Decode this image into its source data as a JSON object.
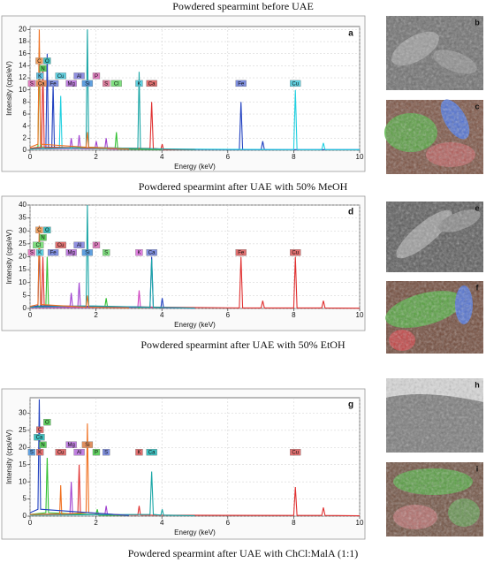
{
  "chart_data": [
    {
      "type": "line",
      "title": "Powdered spearmint before UAE",
      "panel": "a",
      "x_label": "Energy (keV)",
      "y_label": "Intensity (cps/eV)",
      "xlim": [
        0,
        10
      ],
      "xticks": [
        0,
        2,
        4,
        6,
        8,
        10
      ],
      "ylim": [
        0,
        20.5
      ],
      "yticks": [
        0,
        2,
        4,
        6,
        8,
        10,
        12,
        14,
        16,
        18,
        20
      ],
      "grid": true,
      "series": [
        {
          "color": "#2040c0",
          "x": [
            0,
            0.48,
            0.52,
            0.56,
            0.66,
            0.7,
            0.74,
            6.35,
            6.4,
            6.45,
            7.01,
            7.06,
            7.11,
            10
          ],
          "values": [
            0.2,
            0.3,
            16,
            0.4,
            0.3,
            11,
            0.3,
            0.1,
            8,
            0.1,
            0.1,
            1.5,
            0.1,
            0.1
          ]
        },
        {
          "color": "#20d0e0",
          "x": [
            0,
            0.89,
            0.93,
            0.97,
            8.0,
            8.05,
            8.1,
            8.85,
            8.9,
            8.95,
            10
          ],
          "values": [
            0.2,
            0.3,
            9,
            0.3,
            0.1,
            10,
            0.1,
            0.1,
            1.2,
            0.1,
            0.1
          ]
        },
        {
          "color": "#a040d0",
          "x": [
            0,
            1.21,
            1.25,
            1.29,
            1.45,
            1.49,
            1.53,
            1.97,
            2.01,
            2.05,
            2.27,
            2.31,
            2.35,
            4
          ],
          "values": [
            0.2,
            0.3,
            2,
            0.3,
            0.3,
            2.5,
            0.3,
            0.3,
            1.5,
            0.3,
            0.3,
            2,
            0.2,
            0.1
          ]
        },
        {
          "color": "#30c030",
          "x": [
            0,
            0.24,
            0.28,
            0.32,
            2.58,
            2.62,
            2.66,
            4
          ],
          "values": [
            0.3,
            0.5,
            17,
            0.5,
            0.3,
            3,
            0.2,
            0.1
          ]
        },
        {
          "color": "#e03030",
          "x": [
            0,
            0.35,
            0.39,
            0.43,
            3.64,
            3.69,
            3.74,
            3.97,
            4.01,
            4.05,
            5
          ],
          "values": [
            0.3,
            0.5,
            14,
            0.5,
            0.3,
            8,
            0.3,
            0.2,
            1,
            0.1,
            0.1
          ]
        },
        {
          "color": "#1aa6a6",
          "x": [
            0,
            1.7,
            1.74,
            1.78,
            3.27,
            3.31,
            3.35,
            5
          ],
          "values": [
            0.2,
            0.5,
            20,
            0.5,
            0.3,
            13,
            0.3,
            0.1
          ]
        },
        {
          "color": "#f07020",
          "x": [
            0,
            0.24,
            0.28,
            0.32,
            1.7,
            1.74,
            1.78,
            3
          ],
          "values": [
            0.5,
            1,
            20,
            1,
            0.5,
            3,
            0.5,
            0.2
          ]
        }
      ],
      "tags": [
        {
          "label": "Ca",
          "energy": 0.34,
          "color": "#e89060"
        },
        {
          "label": "K",
          "energy": 0.3,
          "color": "#60c0e0"
        },
        {
          "label": "N",
          "energy": 0.39,
          "color": "#60d060"
        },
        {
          "label": "S",
          "energy": 0.05,
          "color": "#e080c0"
        },
        {
          "label": "C",
          "energy": 0.28,
          "color": "#f0a060"
        },
        {
          "label": "O",
          "energy": 0.52,
          "color": "#40c0c0"
        },
        {
          "label": "Fe",
          "energy": 0.7,
          "color": "#8090e0"
        },
        {
          "label": "Cu",
          "energy": 0.93,
          "color": "#60d0e0"
        },
        {
          "label": "Mg",
          "energy": 1.25,
          "color": "#c080e0"
        },
        {
          "label": "Al",
          "energy": 1.49,
          "color": "#9090e0"
        },
        {
          "label": "Si",
          "energy": 1.74,
          "color": "#60a0e0"
        },
        {
          "label": "P",
          "energy": 2.01,
          "color": "#e080c0"
        },
        {
          "label": "S",
          "energy": 2.31,
          "color": "#e080a0"
        },
        {
          "label": "Cl",
          "energy": 2.62,
          "color": "#80e080"
        },
        {
          "label": "K",
          "energy": 3.31,
          "color": "#60d0e0"
        },
        {
          "label": "Ca",
          "energy": 3.69,
          "color": "#e07070"
        },
        {
          "label": "Fe",
          "energy": 6.4,
          "color": "#8090e0"
        },
        {
          "label": "Cu",
          "energy": 8.05,
          "color": "#60d0e0"
        }
      ]
    },
    {
      "type": "line",
      "title": "Powdered spearmint after UAE with 50% MeOH",
      "panel": "d",
      "x_label": "Energy (keV)",
      "y_label": "Intensity (cps/eV)",
      "xlim": [
        0,
        10
      ],
      "xticks": [
        0,
        2,
        4,
        6,
        8,
        10
      ],
      "ylim": [
        0,
        40
      ],
      "yticks": [
        0,
        5,
        10,
        15,
        20,
        25,
        30,
        35,
        40
      ],
      "grid": true,
      "series": [
        {
          "color": "#e03030",
          "x": [
            0,
            0.35,
            0.39,
            0.43,
            6.35,
            6.4,
            6.45,
            7.01,
            7.06,
            7.11,
            8.0,
            8.05,
            8.1,
            8.85,
            8.9,
            8.95,
            10
          ],
          "values": [
            0.5,
            1,
            20,
            1,
            0.2,
            20,
            0.2,
            0.2,
            3,
            0.2,
            0.2,
            20,
            0.2,
            0.2,
            3,
            0.2,
            0.1
          ]
        },
        {
          "color": "#a040d0",
          "x": [
            0,
            1.21,
            1.25,
            1.29,
            1.45,
            1.49,
            1.53,
            3
          ],
          "values": [
            0.5,
            0.6,
            6,
            0.6,
            0.6,
            10,
            0.5,
            0.2
          ]
        },
        {
          "color": "#30c030",
          "x": [
            0,
            0.48,
            0.52,
            0.56,
            2.27,
            2.31,
            2.35,
            4
          ],
          "values": [
            0.5,
            1,
            20,
            1,
            0.5,
            4,
            0.4,
            0.2
          ]
        },
        {
          "color": "#d040c0",
          "x": [
            0,
            3.27,
            3.31,
            3.35,
            5
          ],
          "values": [
            0.3,
            0.4,
            7,
            0.4,
            0.1
          ]
        },
        {
          "color": "#2040c0",
          "x": [
            0,
            0.24,
            0.28,
            0.32,
            3.64,
            3.69,
            3.74,
            3.97,
            4.01,
            4.05,
            5
          ],
          "values": [
            0.5,
            1,
            26,
            1,
            0.5,
            20,
            0.5,
            0.3,
            4,
            0.3,
            0.1
          ]
        },
        {
          "color": "#1aa6a6",
          "x": [
            0,
            1.7,
            1.74,
            1.78,
            3.64,
            3.69,
            3.74,
            5
          ],
          "values": [
            0.5,
            1,
            40,
            1,
            0.5,
            19,
            0.5,
            0.1
          ]
        },
        {
          "color": "#f07020",
          "x": [
            0,
            0.24,
            0.28,
            0.32,
            1.7,
            1.74,
            1.78,
            3
          ],
          "values": [
            0.8,
            1.5,
            32,
            1.5,
            0.5,
            5,
            0.5,
            0.2
          ]
        }
      ],
      "tags": [
        {
          "label": "S",
          "energy": 0.05,
          "color": "#e080c0"
        },
        {
          "label": "Cl",
          "energy": 0.25,
          "color": "#80e080"
        },
        {
          "label": "K",
          "energy": 0.3,
          "color": "#60d0e0"
        },
        {
          "label": "N",
          "energy": 0.39,
          "color": "#60d060"
        },
        {
          "label": "C",
          "energy": 0.28,
          "color": "#f0a060"
        },
        {
          "label": "O",
          "energy": 0.52,
          "color": "#40c0c0"
        },
        {
          "label": "Fe",
          "energy": 0.7,
          "color": "#8090e0"
        },
        {
          "label": "Cu",
          "energy": 0.93,
          "color": "#e07070"
        },
        {
          "label": "Mg",
          "energy": 1.25,
          "color": "#c080e0"
        },
        {
          "label": "Al",
          "energy": 1.49,
          "color": "#9090e0"
        },
        {
          "label": "Si",
          "energy": 1.74,
          "color": "#60a0e0"
        },
        {
          "label": "P",
          "energy": 2.01,
          "color": "#e080c0"
        },
        {
          "label": "S",
          "energy": 2.31,
          "color": "#80e080"
        },
        {
          "label": "K",
          "energy": 3.31,
          "color": "#e080e0"
        },
        {
          "label": "Ca",
          "energy": 3.69,
          "color": "#8090e0"
        },
        {
          "label": "Fe",
          "energy": 6.4,
          "color": "#e07070"
        },
        {
          "label": "Cu",
          "energy": 8.05,
          "color": "#e07070"
        }
      ]
    },
    {
      "type": "line",
      "title": "Powdered spearmint after UAE with ChCl:MalA (1:1)",
      "panel": "g",
      "x_label": "Energy (keV)",
      "y_label": "Intensity (cps/eV)",
      "xlim": [
        0,
        10
      ],
      "xticks": [
        0,
        2,
        4,
        6,
        8,
        10
      ],
      "ylim": [
        0,
        34.5
      ],
      "yticks": [
        0,
        5,
        10,
        15,
        20,
        25,
        30
      ],
      "grid": true,
      "series": [
        {
          "color": "#e03030",
          "x": [
            0,
            1.45,
            1.49,
            1.53,
            3.27,
            3.31,
            3.35,
            8.0,
            8.05,
            8.1,
            8.85,
            8.9,
            8.95,
            10
          ],
          "values": [
            0.5,
            0.6,
            15,
            0.5,
            0.3,
            3,
            0.3,
            0.2,
            8.5,
            0.2,
            0.2,
            2.5,
            0.2,
            0.1
          ]
        },
        {
          "color": "#a040d0",
          "x": [
            0,
            1.21,
            1.25,
            1.29,
            2.27,
            2.31,
            2.35,
            3
          ],
          "values": [
            0.5,
            0.6,
            10,
            0.6,
            0.4,
            3,
            0.3,
            0.2
          ]
        },
        {
          "color": "#30c030",
          "x": [
            0,
            0.48,
            0.52,
            0.56,
            2.0,
            2.04,
            2.08,
            3
          ],
          "values": [
            0.5,
            1,
            17,
            1,
            0.4,
            2,
            0.3,
            0.2
          ]
        },
        {
          "color": "#1aa6a6",
          "x": [
            0,
            3.64,
            3.69,
            3.74,
            3.97,
            4.01,
            4.05,
            5
          ],
          "values": [
            0.3,
            0.5,
            13,
            0.5,
            0.3,
            2,
            0.3,
            0.1
          ]
        },
        {
          "color": "#f07020",
          "x": [
            0,
            0.9,
            0.93,
            0.96,
            1.7,
            1.74,
            1.78,
            3
          ],
          "values": [
            0.5,
            0.6,
            9,
            0.6,
            1,
            27,
            1,
            0.2
          ]
        },
        {
          "color": "#2040c0",
          "x": [
            0,
            0.24,
            0.28,
            0.32,
            3
          ],
          "values": [
            1,
            2,
            34,
            2,
            0.2
          ]
        }
      ],
      "tags": [
        {
          "label": "K",
          "energy": 0.3,
          "color": "#e07070"
        },
        {
          "label": "N",
          "energy": 0.39,
          "color": "#60d060"
        },
        {
          "label": "S",
          "energy": 0.05,
          "color": "#60a0e0"
        },
        {
          "label": "Ca",
          "energy": 0.28,
          "color": "#40c0c0"
        },
        {
          "label": "C",
          "energy": 0.3,
          "color": "#e07070"
        },
        {
          "label": "O",
          "energy": 0.52,
          "color": "#60d060"
        },
        {
          "label": "Cu",
          "energy": 0.93,
          "color": "#e07070"
        },
        {
          "label": "Mg",
          "energy": 1.25,
          "color": "#c080e0"
        },
        {
          "label": "Al",
          "energy": 1.49,
          "color": "#c080e0"
        },
        {
          "label": "Si",
          "energy": 1.74,
          "color": "#e09060"
        },
        {
          "label": "P",
          "energy": 2.01,
          "color": "#60d060"
        },
        {
          "label": "S",
          "energy": 2.31,
          "color": "#8090e0"
        },
        {
          "label": "K",
          "energy": 3.31,
          "color": "#e07070"
        },
        {
          "label": "Ca",
          "energy": 3.69,
          "color": "#40c0c0"
        },
        {
          "label": "Cu",
          "energy": 8.05,
          "color": "#e07070"
        }
      ]
    }
  ],
  "between_title": "Powdered spearmint after UAE with 50% EtOH",
  "image_labels": [
    "b",
    "c",
    "e",
    "f",
    "h",
    "i"
  ]
}
